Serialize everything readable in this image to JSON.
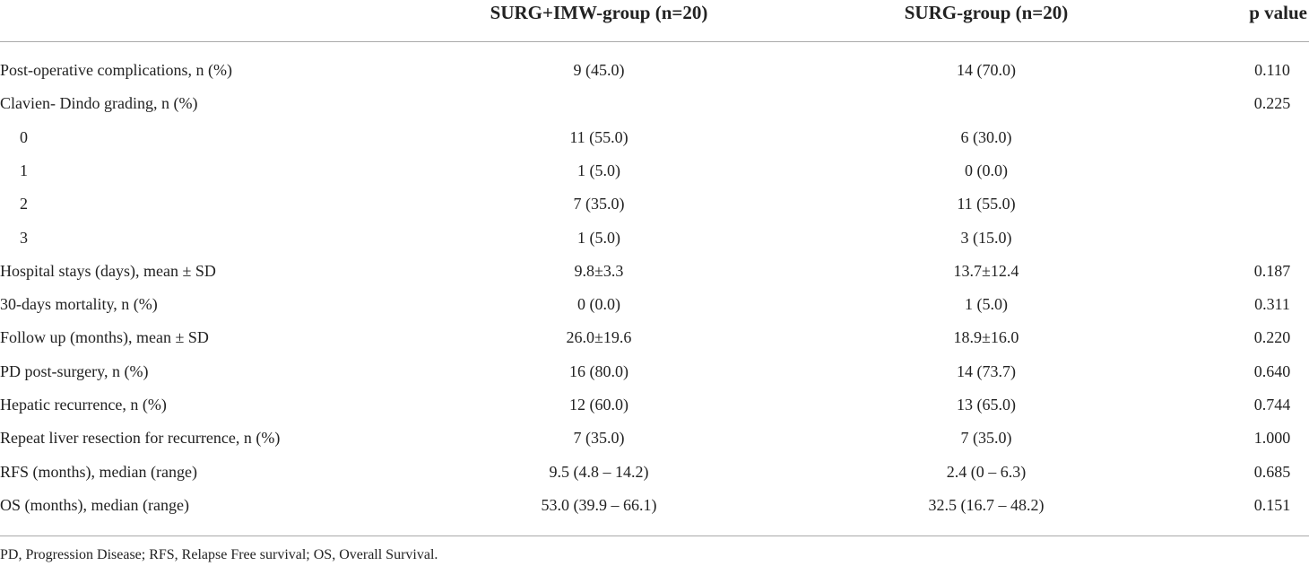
{
  "table": {
    "header": [
      "SURG+IMW-group (n=20)",
      "SURG-group (n=20)",
      "p value"
    ],
    "rows": [
      [
        "Post-operative complications, n (%)",
        "9 (45.0)",
        "14 (70.0)",
        "0.110"
      ],
      [
        "Clavien- Dindo grading, n (%)",
        null,
        null,
        "0.225"
      ],
      [
        "0",
        "11 (55.0)",
        "6 (30.0)",
        null
      ],
      [
        "1",
        "1 (5.0)",
        "0 (0.0)",
        null
      ],
      [
        "2",
        "7 (35.0)",
        "11 (55.0)",
        null
      ],
      [
        "3",
        "1 (5.0)",
        "3 (15.0)",
        null
      ],
      [
        "Hospital stays (days), mean ± SD",
        "9.8±3.3",
        "13.7±12.4",
        "0.187"
      ],
      [
        "30-days mortality, n (%)",
        "0 (0.0)",
        "1 (5.0)",
        "0.311"
      ],
      [
        "Follow up (months), mean ± SD",
        "26.0±19.6",
        "18.9±16.0",
        "0.220"
      ],
      [
        "PD post-surgery, n (%)",
        "16 (80.0)",
        "14 (73.7)",
        "0.640"
      ],
      [
        "Hepatic recurrence, n (%)",
        "12 (60.0)",
        "13 (65.0)",
        "0.744"
      ],
      [
        "Repeat liver resection for recurrence, n (%)",
        "7 (35.0)",
        "7 (35.0)",
        "1.000"
      ],
      [
        "RFS (months), median (range)",
        "9.5 (4.8 – 14.2)",
        "2.4 (0 – 6.3)",
        "0.685"
      ],
      [
        "OS (months), median (range)",
        "53.0 (39.9 – 66.1)",
        "32.5 (16.7 – 48.2)",
        "0.151"
      ]
    ],
    "footnote": "PD, Progression Disease; RFS, Relapse Free survival; OS, Overall Survival."
  }
}
